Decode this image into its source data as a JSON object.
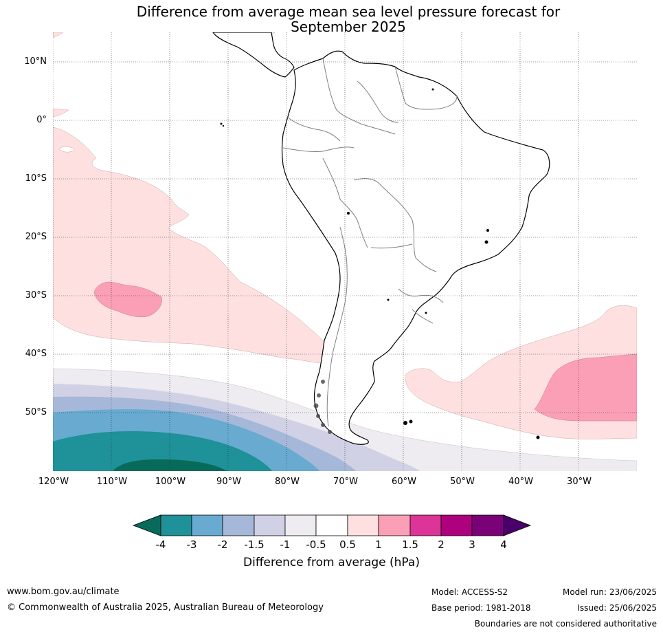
{
  "title": {
    "line1": "Difference from average mean sea level pressure forecast for",
    "line2": "September 2025"
  },
  "map": {
    "latitude_labels": [
      "10°N",
      "0°",
      "10°S",
      "20°S",
      "30°S",
      "40°S",
      "50°S"
    ],
    "longitude_labels": [
      "120°W",
      "110°W",
      "100°W",
      "90°W",
      "80°W",
      "70°W",
      "60°W",
      "50°W",
      "40°W",
      "30°W"
    ],
    "extent": {
      "lon": [
        -120,
        -20
      ],
      "lat": [
        -60,
        15
      ]
    },
    "gridlines": true
  },
  "colorbar": {
    "label": "Difference from average (hPa)",
    "ticks": [
      "-4",
      "-3",
      "-2",
      "-1.5",
      "-1",
      "-0.5",
      "0.5",
      "1",
      "1.5",
      "2",
      "3",
      "4"
    ],
    "colors": {
      "below_-4": "#086a5a",
      "-4_-3": "#1e9199",
      "-3_-2": "#68aad0",
      "-2_-1.5": "#a6b8d9",
      "-1.5_-1": "#d1d1e5",
      "-1_-0.5": "#eeebf1",
      "-0.5_0.5": "#ffffff",
      "0.5_1": "#fde0df",
      "1_1.5": "#fa9fb5",
      "1.5_2": "#dd3497",
      "2_3": "#ae017e",
      "3_4": "#7a0177",
      "above_4": "#49006a"
    }
  },
  "footer": {
    "website": "www.bom.gov.au/climate",
    "copyright": "© Commonwealth of Australia 2025, Australian Bureau of Meteorology",
    "model": "Model: ACCESS-S2",
    "base_period": "Base period: 1981-2018",
    "model_run": "Model run: 23/06/2025",
    "issued": "Issued: 25/06/2025",
    "disclaimer": "Boundaries are not considered authoritative"
  }
}
